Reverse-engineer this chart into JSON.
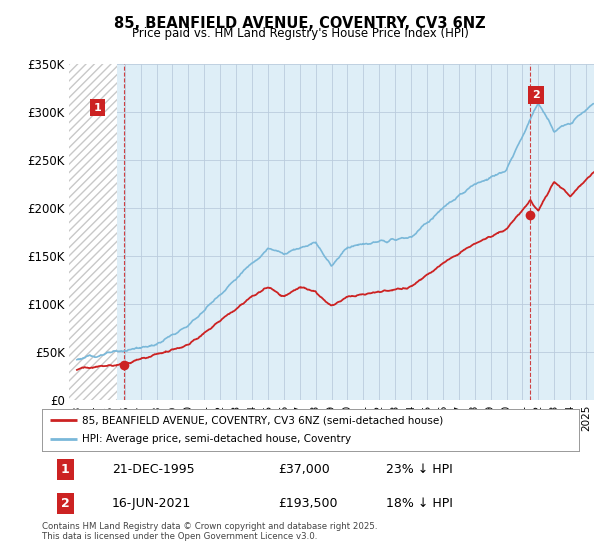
{
  "title": "85, BEANFIELD AVENUE, COVENTRY, CV3 6NZ",
  "subtitle": "Price paid vs. HM Land Registry's House Price Index (HPI)",
  "ylim": [
    0,
    350000
  ],
  "yticks": [
    0,
    50000,
    100000,
    150000,
    200000,
    250000,
    300000,
    350000
  ],
  "ytick_labels": [
    "£0",
    "£50K",
    "£100K",
    "£150K",
    "£200K",
    "£250K",
    "£300K",
    "£350K"
  ],
  "hpi_color": "#7ab8d9",
  "hpi_bg_color": "#deeef7",
  "price_color": "#cc2222",
  "point1_x": 1995.97,
  "point1_y": 37000,
  "point2_x": 2021.46,
  "point2_y": 193500,
  "annotation_box_color": "#cc2222",
  "legend_line1": "85, BEANFIELD AVENUE, COVENTRY, CV3 6NZ (semi-detached house)",
  "legend_line2": "HPI: Average price, semi-detached house, Coventry",
  "table_row1": [
    "1",
    "21-DEC-1995",
    "£37,000",
    "23% ↓ HPI"
  ],
  "table_row2": [
    "2",
    "16-JUN-2021",
    "£193,500",
    "18% ↓ HPI"
  ],
  "footer": "Contains HM Land Registry data © Crown copyright and database right 2025.\nThis data is licensed under the Open Government Licence v3.0.",
  "background_color": "#ffffff",
  "grid_color": "#bbccdd",
  "xmin": 1992.5,
  "xmax": 2025.5,
  "hatch_cutoff": 1995.5
}
